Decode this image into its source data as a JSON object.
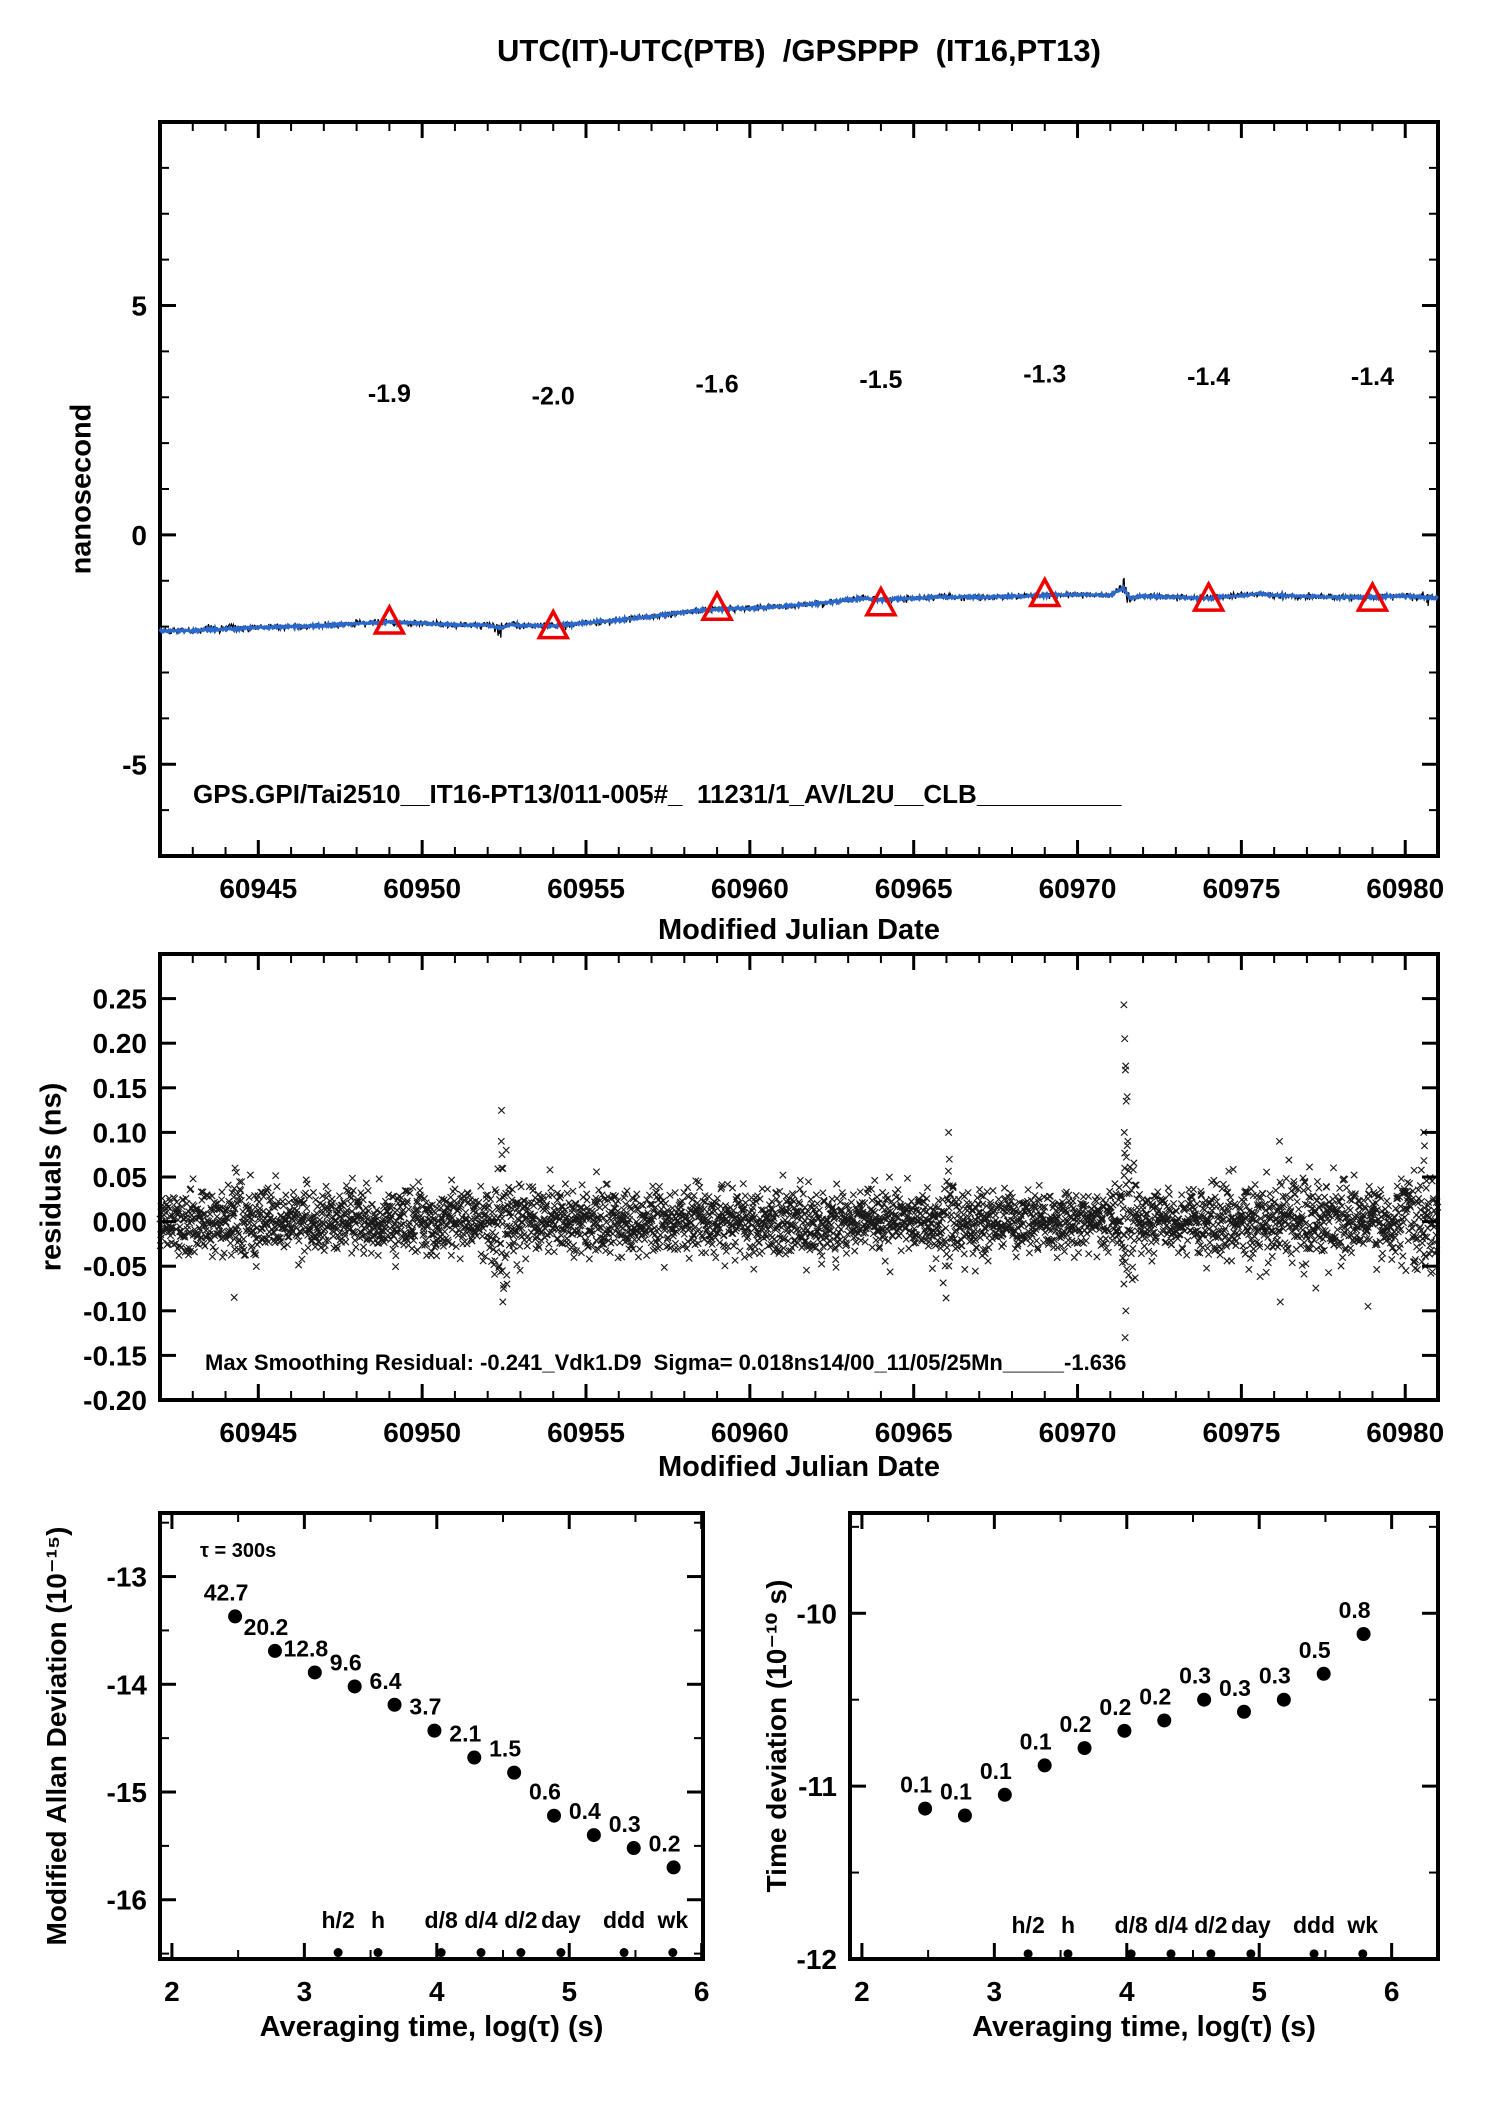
{
  "colors": {
    "red": "#ee0000",
    "blue": "#2a68cc",
    "ink": "#000000"
  },
  "chart_data": [
    {
      "id": "utc-difference",
      "type": "line",
      "title": "UTC(IT)-UTC(PTB)  /GPSPPP  (IT16,PT13)",
      "xlabel": "Modified Julian Date",
      "ylabel": "nanosecond",
      "xlim": [
        60942,
        60981
      ],
      "ylim": [
        -7,
        9
      ],
      "xticks": [
        60945,
        60950,
        60955,
        60960,
        60965,
        60970,
        60975,
        60980
      ],
      "yticks": [
        -5,
        0,
        5
      ],
      "trend": [
        [
          60942,
          -2.1
        ],
        [
          60943,
          -2.08
        ],
        [
          60944,
          -2.05
        ],
        [
          60945,
          -2.02
        ],
        [
          60946,
          -2.0
        ],
        [
          60947,
          -1.98
        ],
        [
          60948,
          -1.93
        ],
        [
          60949,
          -1.9
        ],
        [
          60950,
          -1.93
        ],
        [
          60951,
          -1.96
        ],
        [
          60952,
          -1.97
        ],
        [
          60952.4,
          -2.03
        ],
        [
          60952.7,
          -1.95
        ],
        [
          60953,
          -1.98
        ],
        [
          60954,
          -1.98
        ],
        [
          60955,
          -1.92
        ],
        [
          60956,
          -1.86
        ],
        [
          60957,
          -1.78
        ],
        [
          60958,
          -1.68
        ],
        [
          60959,
          -1.62
        ],
        [
          60960,
          -1.6
        ],
        [
          60961,
          -1.56
        ],
        [
          60962,
          -1.5
        ],
        [
          60963,
          -1.42
        ],
        [
          60963.5,
          -1.38
        ],
        [
          60964,
          -1.42
        ],
        [
          60965,
          -1.38
        ],
        [
          60966,
          -1.35
        ],
        [
          60967,
          -1.36
        ],
        [
          60968,
          -1.34
        ],
        [
          60969,
          -1.32
        ],
        [
          60970,
          -1.3
        ],
        [
          60971,
          -1.32
        ],
        [
          60971.4,
          -1.15
        ],
        [
          60971.6,
          -1.38
        ],
        [
          60972,
          -1.33
        ],
        [
          60973,
          -1.36
        ],
        [
          60974,
          -1.38
        ],
        [
          60975,
          -1.32
        ],
        [
          60975.5,
          -1.28
        ],
        [
          60976,
          -1.32
        ],
        [
          60977,
          -1.34
        ],
        [
          60978,
          -1.36
        ],
        [
          60979,
          -1.36
        ],
        [
          60980,
          -1.33
        ],
        [
          60981,
          -1.38
        ]
      ],
      "calibration_points": [
        {
          "x": 60949,
          "y": -1.9,
          "label": "-1.9",
          "label_y": 2.9
        },
        {
          "x": 60954,
          "y": -2.0,
          "label": "-2.0",
          "label_y": 2.84
        },
        {
          "x": 60959,
          "y": -1.6,
          "label": "-1.6",
          "label_y": 3.1
        },
        {
          "x": 60964,
          "y": -1.5,
          "label": "-1.5",
          "label_y": 3.2
        },
        {
          "x": 60969,
          "y": -1.3,
          "label": "-1.3",
          "label_y": 3.32
        },
        {
          "x": 60974,
          "y": -1.4,
          "label": "-1.4",
          "label_y": 3.27
        },
        {
          "x": 60979,
          "y": -1.4,
          "label": "-1.4",
          "label_y": 3.27
        }
      ],
      "annotation": "GPS.GPI/Tai2510__IT16-PT13/011-005#_  11231/1_AV/L2U__CLB__________"
    },
    {
      "id": "residuals",
      "type": "scatter",
      "xlabel": "Modified Julian Date",
      "ylabel": "residuals (ns)",
      "xlim": [
        60942,
        60981
      ],
      "ylim": [
        -0.2,
        0.3
      ],
      "xticks": [
        60945,
        60950,
        60955,
        60960,
        60965,
        60970,
        60975,
        60980
      ],
      "yticks": [
        0.25,
        0.2,
        0.15,
        0.1,
        0.05,
        0,
        -0.05,
        -0.1,
        -0.15,
        -0.2
      ],
      "marker": "x",
      "sigma_ns": 0.018,
      "bursts": [
        {
          "x": 60944.4,
          "w": 0.4,
          "f": 1.4
        },
        {
          "x": 60952.5,
          "w": 0.25,
          "f": 2.3
        },
        {
          "x": 60958.5,
          "w": 0.3,
          "f": 1.3
        },
        {
          "x": 60966.0,
          "w": 0.15,
          "f": 1.6
        },
        {
          "x": 60971.5,
          "w": 0.15,
          "f": 3.4
        },
        {
          "x": 60976.5,
          "w": 1.5,
          "f": 1.5
        },
        {
          "x": 60980.5,
          "w": 0.6,
          "f": 1.9
        }
      ],
      "outliers": [
        {
          "x": 60944.3,
          "ys": [
            -0.085,
            0.06
          ]
        },
        {
          "x": 60952.45,
          "ys": [
            0.09,
            0.075,
            -0.09,
            -0.075,
            0.06,
            -0.055
          ]
        },
        {
          "x": 60952.6,
          "ys": [
            0.08,
            -0.07
          ]
        },
        {
          "x": 60966.1,
          "ys": [
            0.1,
            0.07
          ]
        },
        {
          "x": 60971.45,
          "ys": [
            0.243,
            0.205,
            0.17,
            0.135,
            0.1,
            -0.13,
            -0.1,
            -0.07,
            0.06,
            -0.045
          ]
        },
        {
          "x": 60971.55,
          "ys": [
            0.14,
            0.09,
            -0.06
          ]
        },
        {
          "x": 60976.2,
          "ys": [
            0.09,
            -0.09
          ]
        },
        {
          "x": 60978.9,
          "ys": [
            -0.095
          ]
        },
        {
          "x": 60980.6,
          "ys": [
            0.1,
            0.085,
            -0.05
          ]
        }
      ],
      "annotation": "Max Smoothing Residual: -0.241_Vdk1.D9  Sigma= 0.018ns14/00_11/05/25Mn_____-1.636"
    },
    {
      "id": "mdev",
      "type": "scatter",
      "xlabel": "Averaging time, log(τ) (s)",
      "ylabel": "Modified Allan Deviation (10⁻¹⁵)",
      "note": "τ = 300s",
      "xlim": [
        1.91,
        6.01
      ],
      "ylim": [
        -16.55,
        -12.41
      ],
      "xticks": [
        2,
        3,
        4,
        5,
        6
      ],
      "yticks": [
        -13,
        -14,
        -15,
        -16
      ],
      "points": {
        "x": [
          2.477,
          2.778,
          3.079,
          3.38,
          3.681,
          3.982,
          4.283,
          4.584,
          4.885,
          5.186,
          5.487,
          5.788
        ],
        "y": [
          -13.37,
          -13.69,
          -13.89,
          -14.02,
          -14.19,
          -14.43,
          -14.68,
          -14.82,
          -15.22,
          -15.4,
          -15.52,
          -15.7
        ],
        "labels": [
          "42.7",
          "20.2",
          "12.8",
          "9.6",
          "6.4",
          "3.7",
          "2.1",
          "1.5",
          "0.6",
          "0.4",
          "0.3",
          "0.2"
        ]
      },
      "time_marks": [
        {
          "x": 3.255,
          "label": "h/2"
        },
        {
          "x": 3.556,
          "label": "h"
        },
        {
          "x": 4.033,
          "label": "d/8"
        },
        {
          "x": 4.334,
          "label": "d/4"
        },
        {
          "x": 4.635,
          "label": "d/2"
        },
        {
          "x": 4.937,
          "label": "day"
        },
        {
          "x": 5.414,
          "label": "ddd"
        },
        {
          "x": 5.782,
          "label": "wk"
        }
      ],
      "mark_dot_y": -16.49,
      "mark_label_y": -16.26
    },
    {
      "id": "tdev",
      "type": "scatter",
      "xlabel": "Averaging time, log(τ) (s)",
      "ylabel": "Time deviation (10⁻¹⁰ s)",
      "xlim": [
        1.91,
        6.35
      ],
      "ylim": [
        -12.0,
        -9.42
      ],
      "xticks": [
        2,
        3,
        4,
        5,
        6
      ],
      "yticks": [
        -10,
        -11,
        -12
      ],
      "points": {
        "x": [
          2.477,
          2.778,
          3.079,
          3.38,
          3.681,
          3.982,
          4.283,
          4.584,
          4.885,
          5.186,
          5.487,
          5.788
        ],
        "y": [
          -11.13,
          -11.17,
          -11.05,
          -10.88,
          -10.78,
          -10.68,
          -10.62,
          -10.5,
          -10.57,
          -10.5,
          -10.35,
          -10.12
        ],
        "labels": [
          "0.1",
          "0.1",
          "0.1",
          "0.1",
          "0.2",
          "0.2",
          "0.2",
          "0.3",
          "0.3",
          "0.3",
          "0.5",
          "0.8"
        ]
      },
      "time_marks": [
        {
          "x": 3.255,
          "label": "h/2"
        },
        {
          "x": 3.556,
          "label": "h"
        },
        {
          "x": 4.033,
          "label": "d/8"
        },
        {
          "x": 4.334,
          "label": "d/4"
        },
        {
          "x": 4.635,
          "label": "d/2"
        },
        {
          "x": 4.937,
          "label": "day"
        },
        {
          "x": 5.414,
          "label": "ddd"
        },
        {
          "x": 5.782,
          "label": "wk"
        }
      ],
      "mark_dot_y": -11.97,
      "mark_label_y": -11.85
    }
  ]
}
